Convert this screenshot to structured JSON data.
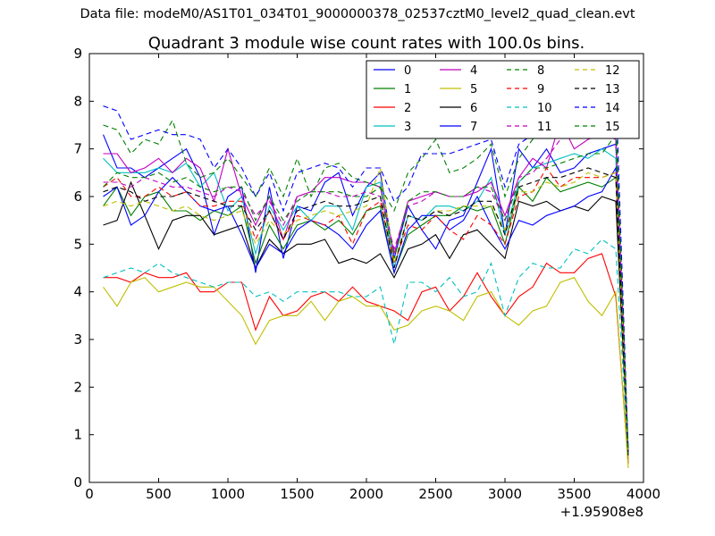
{
  "suptitle": "Data file: modeM0/AS1T01_034T01_9000000378_02537cztM0_level2_quad_clean.evt",
  "chart_data": {
    "type": "line",
    "title": "Quadrant 3 module wise count rates with 100.0s bins.",
    "xlabel": "",
    "ylabel": "",
    "x_offset_label": "+1.95908e8",
    "xlim": [
      0,
      4000
    ],
    "ylim": [
      0,
      9
    ],
    "xticks": [
      0,
      500,
      1000,
      1500,
      2000,
      2500,
      3000,
      3500,
      4000
    ],
    "yticks": [
      0,
      1,
      2,
      3,
      4,
      5,
      6,
      7,
      8,
      9
    ],
    "grid": false,
    "legend_position": "top-right",
    "x": [
      100,
      200,
      300,
      400,
      500,
      600,
      700,
      800,
      900,
      1000,
      1100,
      1200,
      1300,
      1400,
      1500,
      1600,
      1700,
      1800,
      1900,
      2000,
      2100,
      2200,
      2300,
      2400,
      2500,
      2600,
      2700,
      2800,
      2900,
      3000,
      3100,
      3200,
      3300,
      3400,
      3500,
      3600,
      3700,
      3800,
      3890
    ],
    "series": [
      {
        "name": "0",
        "color": "#0000ff",
        "dash": "solid",
        "values": [
          7.3,
          6.6,
          6.6,
          6.4,
          6.6,
          6.8,
          7.0,
          6.4,
          5.2,
          6.0,
          6.2,
          4.4,
          6.2,
          4.7,
          5.8,
          5.7,
          6.3,
          6.5,
          5.6,
          6.2,
          6.5,
          4.7,
          5.8,
          5.3,
          4.9,
          5.5,
          5.6,
          6.3,
          7.0,
          5.2,
          7.0,
          6.6,
          7.0,
          6.5,
          6.6,
          6.9,
          7.0,
          7.1,
          0.6
        ]
      },
      {
        "name": "1",
        "color": "#008000",
        "dash": "solid",
        "values": [
          5.8,
          6.2,
          5.6,
          6.0,
          6.1,
          5.7,
          5.7,
          5.5,
          5.7,
          5.6,
          5.8,
          4.6,
          5.4,
          4.9,
          5.4,
          5.5,
          5.3,
          5.5,
          5.2,
          5.7,
          5.8,
          4.4,
          5.2,
          5.4,
          5.6,
          5.6,
          5.8,
          5.7,
          5.8,
          5.0,
          6.2,
          5.9,
          6.4,
          6.1,
          6.2,
          6.3,
          6.2,
          6.4,
          0.5
        ]
      },
      {
        "name": "2",
        "color": "#ff0000",
        "dash": "solid",
        "values": [
          4.3,
          4.3,
          4.2,
          4.4,
          4.3,
          4.3,
          4.4,
          4.0,
          4.0,
          4.2,
          4.2,
          3.2,
          3.9,
          3.5,
          3.6,
          3.9,
          4.0,
          3.8,
          4.1,
          3.8,
          3.7,
          3.6,
          3.4,
          4.0,
          4.1,
          3.6,
          3.9,
          4.4,
          3.9,
          3.5,
          3.9,
          4.1,
          4.6,
          4.4,
          4.4,
          4.7,
          4.8,
          3.9,
          0.4
        ]
      },
      {
        "name": "3",
        "color": "#00bfbf",
        "dash": "solid",
        "values": [
          6.8,
          6.5,
          6.5,
          6.5,
          6.6,
          6.5,
          6.7,
          6.2,
          6.5,
          5.7,
          6.0,
          4.8,
          5.8,
          5.3,
          5.8,
          5.5,
          5.8,
          5.8,
          5.3,
          6.2,
          6.3,
          4.5,
          5.6,
          5.5,
          5.8,
          5.8,
          5.7,
          5.9,
          6.4,
          5.2,
          6.3,
          6.6,
          6.7,
          6.8,
          6.9,
          6.8,
          7.0,
          6.8,
          0.7
        ]
      },
      {
        "name": "4",
        "color": "#bf00bf",
        "dash": "solid",
        "values": [
          6.9,
          6.9,
          6.5,
          6.6,
          6.8,
          6.5,
          6.8,
          6.6,
          5.9,
          7.0,
          6.0,
          5.4,
          6.0,
          5.1,
          6.0,
          6.1,
          6.4,
          6.4,
          6.3,
          6.3,
          6.2,
          4.8,
          5.9,
          6.0,
          6.1,
          6.0,
          6.0,
          6.1,
          6.3,
          5.6,
          6.4,
          6.8,
          6.6,
          7.6,
          7.0,
          7.2,
          7.3,
          7.2,
          0.6
        ]
      },
      {
        "name": "5",
        "color": "#bfbf00",
        "dash": "solid",
        "values": [
          4.1,
          3.7,
          4.2,
          4.3,
          4.0,
          4.1,
          4.2,
          4.1,
          4.1,
          3.8,
          3.5,
          2.9,
          3.4,
          3.5,
          3.5,
          3.8,
          3.4,
          3.8,
          3.9,
          3.7,
          3.7,
          3.2,
          3.3,
          3.6,
          3.7,
          3.6,
          3.4,
          3.9,
          4.0,
          3.5,
          3.3,
          3.6,
          3.7,
          4.2,
          4.3,
          3.8,
          3.5,
          4.0,
          0.3
        ]
      },
      {
        "name": "6",
        "color": "#000000",
        "dash": "solid",
        "values": [
          5.4,
          5.5,
          6.3,
          5.6,
          4.9,
          5.5,
          5.6,
          5.6,
          5.2,
          5.3,
          5.4,
          4.5,
          5.1,
          4.8,
          5.0,
          5.0,
          5.1,
          4.6,
          4.7,
          4.6,
          4.8,
          4.3,
          4.9,
          5.0,
          5.2,
          4.7,
          5.2,
          5.3,
          5.0,
          4.7,
          5.9,
          5.8,
          5.9,
          5.7,
          5.8,
          5.7,
          6.0,
          5.9,
          0.5
        ]
      },
      {
        "name": "7",
        "color": "#0000ff",
        "dash": "solid",
        "values": [
          6.0,
          6.2,
          5.4,
          5.6,
          6.1,
          6.4,
          6.1,
          5.8,
          5.7,
          5.8,
          5.2,
          4.5,
          5.0,
          4.8,
          5.3,
          5.5,
          5.4,
          5.2,
          4.9,
          5.4,
          5.7,
          4.4,
          5.3,
          5.6,
          5.6,
          5.3,
          5.5,
          6.0,
          5.4,
          4.9,
          5.5,
          5.4,
          5.6,
          5.7,
          5.8,
          6.0,
          6.1,
          6.6,
          0.5
        ]
      },
      {
        "name": "8",
        "color": "#008000",
        "dash": "dashed",
        "values": [
          7.5,
          7.4,
          6.9,
          7.2,
          7.1,
          7.6,
          6.7,
          6.4,
          6.5,
          6.8,
          6.4,
          6.0,
          6.6,
          6.0,
          6.8,
          6.0,
          6.6,
          6.7,
          6.4,
          6.3,
          6.2,
          5.7,
          6.5,
          6.8,
          7.2,
          6.5,
          6.6,
          6.8,
          7.1,
          6.0,
          6.8,
          7.2,
          7.5,
          7.5,
          7.7,
          7.6,
          7.5,
          7.8,
          0.6
        ]
      },
      {
        "name": "9",
        "color": "#ff0000",
        "dash": "dashed",
        "values": [
          6.2,
          6.4,
          6.0,
          6.0,
          6.2,
          6.0,
          6.1,
          5.8,
          5.8,
          5.9,
          5.9,
          5.1,
          5.7,
          5.1,
          5.6,
          5.5,
          5.4,
          5.6,
          5.0,
          5.7,
          5.9,
          4.6,
          5.4,
          5.3,
          5.6,
          5.3,
          5.1,
          5.6,
          5.4,
          5.0,
          6.0,
          6.1,
          6.6,
          6.2,
          6.4,
          6.4,
          6.4,
          6.5,
          0.5
        ]
      },
      {
        "name": "10",
        "color": "#00bfbf",
        "dash": "dashed",
        "values": [
          4.3,
          4.4,
          4.5,
          4.4,
          4.6,
          4.4,
          4.3,
          4.2,
          4.1,
          4.2,
          4.2,
          3.9,
          4.0,
          3.8,
          4.0,
          4.0,
          4.0,
          4.0,
          3.9,
          3.9,
          4.1,
          2.9,
          4.2,
          4.2,
          4.0,
          4.3,
          3.9,
          4.0,
          4.6,
          3.5,
          4.3,
          4.6,
          4.5,
          4.5,
          4.9,
          4.8,
          5.1,
          4.9,
          0.5
        ]
      },
      {
        "name": "11",
        "color": "#bf00bf",
        "dash": "dashed",
        "values": [
          6.3,
          6.3,
          6.2,
          6.4,
          6.3,
          6.2,
          6.2,
          6.1,
          6.0,
          6.2,
          6.1,
          5.6,
          5.9,
          5.4,
          6.0,
          6.1,
          6.1,
          6.0,
          6.0,
          6.1,
          6.0,
          4.9,
          5.8,
          5.9,
          6.1,
          6.0,
          6.0,
          6.2,
          6.1,
          5.5,
          6.4,
          6.5,
          6.8,
          7.2,
          7.3,
          8.2,
          7.9,
          7.2,
          0.6
        ]
      },
      {
        "name": "12",
        "color": "#bfbf00",
        "dash": "dashed",
        "values": [
          5.8,
          5.9,
          5.8,
          5.9,
          5.8,
          5.7,
          5.8,
          5.6,
          5.5,
          5.6,
          5.7,
          5.0,
          5.5,
          5.2,
          5.5,
          5.6,
          5.7,
          5.6,
          5.7,
          5.8,
          6.6,
          4.6,
          5.6,
          5.5,
          5.7,
          5.7,
          5.8,
          5.8,
          5.8,
          5.3,
          6.1,
          6.1,
          6.3,
          6.2,
          6.3,
          6.5,
          6.4,
          6.5,
          0.5
        ]
      },
      {
        "name": "13",
        "color": "#000000",
        "dash": "dashed",
        "values": [
          6.1,
          6.2,
          6.1,
          5.9,
          6.0,
          6.0,
          6.1,
          6.0,
          5.9,
          5.8,
          5.8,
          5.3,
          5.7,
          5.1,
          5.7,
          5.8,
          5.9,
          5.8,
          5.8,
          5.9,
          6.0,
          4.5,
          5.6,
          5.5,
          5.7,
          5.6,
          5.7,
          5.9,
          5.9,
          5.2,
          6.2,
          6.3,
          6.4,
          6.4,
          6.5,
          6.6,
          6.5,
          6.4,
          0.5
        ]
      },
      {
        "name": "14",
        "color": "#0000ff",
        "dash": "dashed",
        "values": [
          7.9,
          7.8,
          7.2,
          7.3,
          7.4,
          7.3,
          7.3,
          7.2,
          6.6,
          7.0,
          6.6,
          6.0,
          6.5,
          5.7,
          6.5,
          6.6,
          6.7,
          6.6,
          6.2,
          6.6,
          6.6,
          5.9,
          6.2,
          6.9,
          6.9,
          6.9,
          7.0,
          7.1,
          7.2,
          6.2,
          7.1,
          7.3,
          7.6,
          7.8,
          7.9,
          8.2,
          7.9,
          8.3,
          0.6
        ]
      },
      {
        "name": "15",
        "color": "#008000",
        "dash": "dashed",
        "values": [
          6.2,
          6.5,
          6.4,
          6.4,
          6.5,
          6.3,
          6.4,
          6.2,
          6.1,
          6.2,
          6.2,
          5.5,
          6.0,
          5.5,
          5.9,
          6.1,
          6.1,
          6.1,
          6.0,
          6.0,
          6.2,
          4.7,
          5.9,
          6.1,
          6.1,
          6.0,
          6.0,
          6.2,
          6.2,
          5.5,
          6.3,
          6.6,
          6.6,
          6.7,
          6.8,
          6.9,
          6.9,
          7.3,
          0.6
        ]
      }
    ]
  }
}
